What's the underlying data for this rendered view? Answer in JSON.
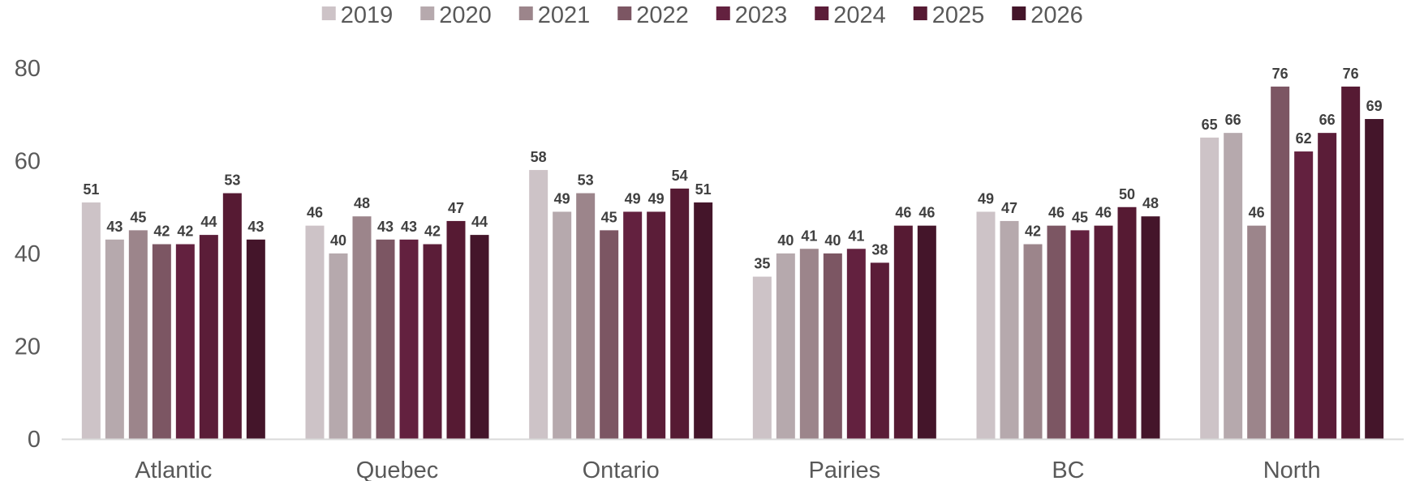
{
  "chart_data": {
    "type": "bar",
    "title": "",
    "xlabel": "",
    "ylabel": "",
    "ylim": [
      0,
      80
    ],
    "yticks": [
      0,
      20,
      40,
      60,
      80
    ],
    "grid": false,
    "legend_position": "top",
    "categories": [
      "Atlantic",
      "Quebec",
      "Ontario",
      "Pairies",
      "BC",
      "North"
    ],
    "series": [
      {
        "name": "2019",
        "color": "#cdc3c7",
        "values": [
          51,
          46,
          58,
          35,
          49,
          65
        ]
      },
      {
        "name": "2020",
        "color": "#b6a9ad",
        "values": [
          43,
          40,
          49,
          40,
          47,
          66
        ]
      },
      {
        "name": "2021",
        "color": "#9c858b",
        "values": [
          45,
          48,
          53,
          41,
          42,
          46
        ]
      },
      {
        "name": "2022",
        "color": "#7c5663",
        "values": [
          42,
          43,
          45,
          40,
          46,
          76
        ]
      },
      {
        "name": "2023",
        "color": "#63213f",
        "values": [
          42,
          43,
          49,
          41,
          45,
          62
        ]
      },
      {
        "name": "2024",
        "color": "#5b1d38",
        "values": [
          44,
          42,
          49,
          38,
          46,
          66
        ]
      },
      {
        "name": "2025",
        "color": "#561a33",
        "values": [
          53,
          47,
          54,
          46,
          50,
          76
        ]
      },
      {
        "name": "2026",
        "color": "#44152a",
        "values": [
          43,
          44,
          51,
          46,
          48,
          69
        ]
      }
    ]
  }
}
